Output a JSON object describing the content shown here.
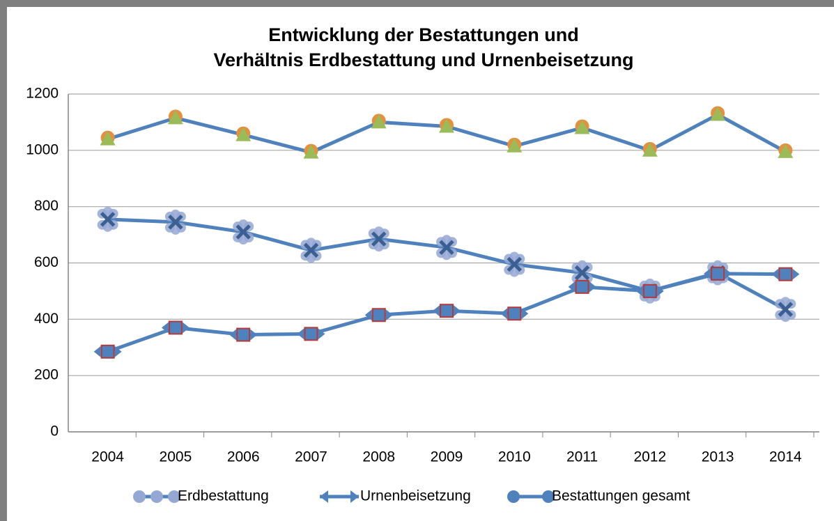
{
  "chart_data": {
    "type": "line",
    "title": [
      "Entwicklung der Bestattungen und",
      "Verhältnis Erdbestattung und Urnenbeisetzung"
    ],
    "categories": [
      "2004",
      "2005",
      "2006",
      "2007",
      "2008",
      "2009",
      "2010",
      "2011",
      "2012",
      "2013",
      "2014"
    ],
    "series": [
      {
        "name": "Erdbestattung",
        "color": "#4f81bd",
        "marker": "x",
        "values": [
          755,
          745,
          710,
          645,
          685,
          655,
          595,
          565,
          500,
          565,
          435
        ]
      },
      {
        "name": "Urnenbeisetzung",
        "color": "#4f81bd",
        "marker": "square",
        "values": [
          285,
          370,
          345,
          348,
          415,
          430,
          420,
          515,
          500,
          562,
          560
        ]
      },
      {
        "name": "Bestattungen gesamt",
        "color": "#4f81bd",
        "marker": "triangle",
        "values": [
          1040,
          1115,
          1055,
          993,
          1100,
          1085,
          1015,
          1080,
          1000,
          1127,
          995
        ]
      }
    ],
    "ylim": [
      0,
      1200
    ],
    "yticks": [
      0,
      200,
      400,
      600,
      800,
      1000,
      1200
    ],
    "grid": true,
    "legend": "bottom"
  }
}
